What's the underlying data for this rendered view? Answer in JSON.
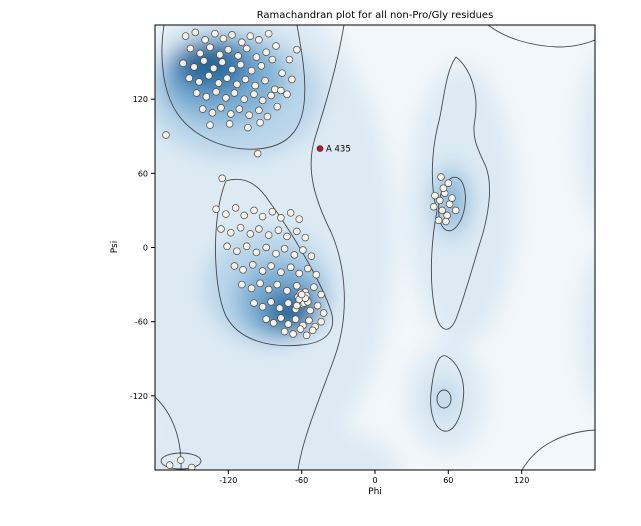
{
  "chart_data": {
    "type": "scatter",
    "title": "Ramachandran plot for all non-Pro/Gly residues",
    "xlabel": "Phi",
    "ylabel": "Psi",
    "xlim": [
      -180,
      180
    ],
    "ylim": [
      -180,
      180
    ],
    "xticks": [
      -120,
      -60,
      0,
      60,
      120
    ],
    "yticks": [
      120,
      60,
      0,
      -60,
      -120
    ],
    "grid": false,
    "legend": "none",
    "background_style": "blue density map (Ramachandran favored/allowed regions) with black contour lines",
    "point_style": {
      "fill": "#f7f3ea",
      "stroke": "#4a4a4a",
      "radius": 3.4
    },
    "highlight": {
      "label": "A 435",
      "phi": -45,
      "psi": 80,
      "color": "#cc1111"
    },
    "palette": {
      "bg": "#f2f7fb",
      "d1": "#ddeaf4",
      "d2": "#b9d5e9",
      "d3": "#7fb0d4",
      "d4": "#3d7fb5",
      "d5": "#24618f",
      "contour": "#2b2b2b",
      "frame": "#000000"
    },
    "points": [
      [
        -155,
        171
      ],
      [
        -147,
        174
      ],
      [
        -139,
        168
      ],
      [
        -131,
        173
      ],
      [
        -124,
        169
      ],
      [
        -117,
        172
      ],
      [
        -109,
        166
      ],
      [
        -102,
        171
      ],
      [
        -95,
        168
      ],
      [
        -87,
        173
      ],
      [
        -151,
        161
      ],
      [
        -143,
        157
      ],
      [
        -135,
        162
      ],
      [
        -127,
        156
      ],
      [
        -120,
        160
      ],
      [
        -112,
        155
      ],
      [
        -105,
        161
      ],
      [
        -97,
        154
      ],
      [
        -89,
        158
      ],
      [
        -81,
        163
      ],
      [
        -157,
        149
      ],
      [
        -148,
        146
      ],
      [
        -140,
        151
      ],
      [
        -132,
        145
      ],
      [
        -125,
        150
      ],
      [
        -117,
        144
      ],
      [
        -110,
        148
      ],
      [
        -101,
        143
      ],
      [
        -93,
        147
      ],
      [
        -84,
        152
      ],
      [
        -152,
        137
      ],
      [
        -144,
        134
      ],
      [
        -136,
        139
      ],
      [
        -128,
        133
      ],
      [
        -121,
        137
      ],
      [
        -113,
        132
      ],
      [
        -106,
        136
      ],
      [
        -98,
        131
      ],
      [
        -90,
        135
      ],
      [
        -82,
        128
      ],
      [
        -146,
        125
      ],
      [
        -138,
        122
      ],
      [
        -130,
        126
      ],
      [
        -122,
        121
      ],
      [
        -115,
        125
      ],
      [
        -107,
        120
      ],
      [
        -99,
        124
      ],
      [
        -92,
        119
      ],
      [
        -85,
        123
      ],
      [
        -77,
        127
      ],
      [
        -141,
        112
      ],
      [
        -133,
        109
      ],
      [
        -126,
        113
      ],
      [
        -118,
        108
      ],
      [
        -111,
        112
      ],
      [
        -103,
        107
      ],
      [
        -95,
        111
      ],
      [
        -88,
        106
      ],
      [
        -135,
        99
      ],
      [
        -119,
        100
      ],
      [
        -104,
        97
      ],
      [
        -94,
        101
      ],
      [
        -76,
        141
      ],
      [
        -70,
        152
      ],
      [
        -68,
        136
      ],
      [
        -64,
        160
      ],
      [
        -72,
        124
      ],
      [
        -80,
        114
      ],
      [
        -130,
        31
      ],
      [
        -122,
        27
      ],
      [
        -114,
        32
      ],
      [
        -107,
        26
      ],
      [
        -99,
        30
      ],
      [
        -92,
        25
      ],
      [
        -84,
        29
      ],
      [
        -77,
        24
      ],
      [
        -69,
        28
      ],
      [
        -62,
        23
      ],
      [
        -126,
        15
      ],
      [
        -118,
        12
      ],
      [
        -110,
        16
      ],
      [
        -102,
        11
      ],
      [
        -95,
        15
      ],
      [
        -87,
        10
      ],
      [
        -79,
        14
      ],
      [
        -72,
        9
      ],
      [
        -64,
        13
      ],
      [
        -57,
        8
      ],
      [
        -121,
        1
      ],
      [
        -113,
        -3
      ],
      [
        -105,
        1
      ],
      [
        -97,
        -4
      ],
      [
        -89,
        0
      ],
      [
        -81,
        -5
      ],
      [
        -74,
        -1
      ],
      [
        -66,
        -6
      ],
      [
        -59,
        -2
      ],
      [
        -52,
        -7
      ],
      [
        -115,
        -15
      ],
      [
        -108,
        -18
      ],
      [
        -100,
        -14
      ],
      [
        -92,
        -19
      ],
      [
        -85,
        -15
      ],
      [
        -77,
        -20
      ],
      [
        -69,
        -16
      ],
      [
        -62,
        -21
      ],
      [
        -55,
        -17
      ],
      [
        -48,
        -22
      ],
      [
        -109,
        -30
      ],
      [
        -101,
        -33
      ],
      [
        -94,
        -29
      ],
      [
        -87,
        -34
      ],
      [
        -80,
        -30
      ],
      [
        -72,
        -35
      ],
      [
        -64,
        -31
      ],
      [
        -57,
        -36
      ],
      [
        -50,
        -32
      ],
      [
        -44,
        -38
      ],
      [
        -99,
        -45
      ],
      [
        -92,
        -48
      ],
      [
        -85,
        -44
      ],
      [
        -78,
        -49
      ],
      [
        -71,
        -45
      ],
      [
        -65,
        -50
      ],
      [
        -59,
        -46
      ],
      [
        -53,
        -51
      ],
      [
        -47,
        -47
      ],
      [
        -42,
        -53
      ],
      [
        -89,
        -58
      ],
      [
        -83,
        -61
      ],
      [
        -77,
        -57
      ],
      [
        -71,
        -62
      ],
      [
        -65,
        -58
      ],
      [
        -59,
        -63
      ],
      [
        -54,
        -59
      ],
      [
        -49,
        -64
      ],
      [
        -44,
        -60
      ],
      [
        -74,
        -68
      ],
      [
        -67,
        -70
      ],
      [
        -61,
        -66
      ],
      [
        -56,
        -71
      ],
      [
        -51,
        -67
      ],
      [
        -63,
        -40
      ],
      [
        -59,
        -43
      ],
      [
        -56,
        -39
      ],
      [
        -61,
        -37
      ],
      [
        -58,
        -45
      ],
      [
        -64,
        -47
      ],
      [
        -55,
        -44
      ],
      [
        -62,
        -42
      ],
      [
        -57,
        -41
      ],
      [
        -60,
        -38
      ],
      [
        49,
        42
      ],
      [
        53,
        38
      ],
      [
        57,
        44
      ],
      [
        61,
        35
      ],
      [
        55,
        30
      ],
      [
        59,
        26
      ],
      [
        52,
        22
      ],
      [
        63,
        40
      ],
      [
        56,
        48
      ],
      [
        60,
        52
      ],
      [
        48,
        33
      ],
      [
        66,
        30
      ],
      [
        54,
        57
      ],
      [
        58,
        21
      ],
      [
        -168,
        -176
      ],
      [
        -159,
        -172
      ],
      [
        -150,
        -178
      ],
      [
        -96,
        76
      ],
      [
        -171,
        91
      ],
      [
        -125,
        56
      ]
    ]
  }
}
